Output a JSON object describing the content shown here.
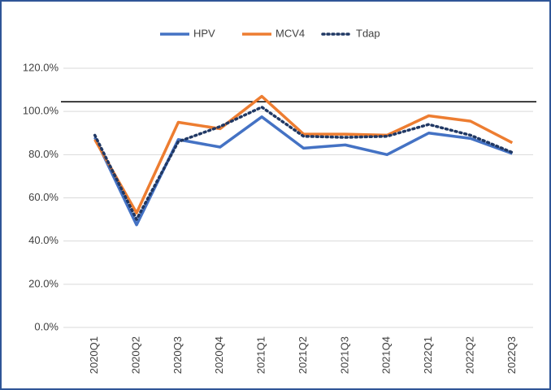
{
  "chart_data": {
    "type": "line",
    "categories": [
      "2020Q1",
      "2020Q2",
      "2020Q3",
      "2020Q4",
      "2021Q1",
      "2021Q2",
      "2021Q3",
      "2021Q4",
      "2022Q1",
      "2022Q2",
      "2022Q3"
    ],
    "series": [
      {
        "name": "HPV",
        "color": "#4472c4",
        "dash": "solid",
        "values": [
          88,
          47.5,
          87,
          83.5,
          97.5,
          83,
          84.5,
          80,
          90,
          87.5,
          80.5
        ]
      },
      {
        "name": "MCV4",
        "color": "#ed7d31",
        "dash": "solid",
        "values": [
          87,
          53,
          95,
          92,
          107,
          89.5,
          89.5,
          89,
          98,
          95.5,
          85.5
        ]
      },
      {
        "name": "Tdap",
        "color": "#203864",
        "dash": "dotted",
        "values": [
          89,
          50,
          86,
          93,
          102,
          88.5,
          88,
          88.5,
          94,
          89,
          81
        ]
      }
    ],
    "reference_line": 104.5,
    "ylim": [
      0,
      120
    ],
    "yticks": [
      {
        "value": 0,
        "label": "0.0%"
      },
      {
        "value": 20,
        "label": "20.0%"
      },
      {
        "value": 40,
        "label": "40.0%"
      },
      {
        "value": 60,
        "label": "60.0%"
      },
      {
        "value": 80,
        "label": "80.0%"
      },
      {
        "value": 100,
        "label": "100.0%"
      },
      {
        "value": 120,
        "label": "120.0%"
      }
    ],
    "grid": true,
    "legend": "top"
  }
}
